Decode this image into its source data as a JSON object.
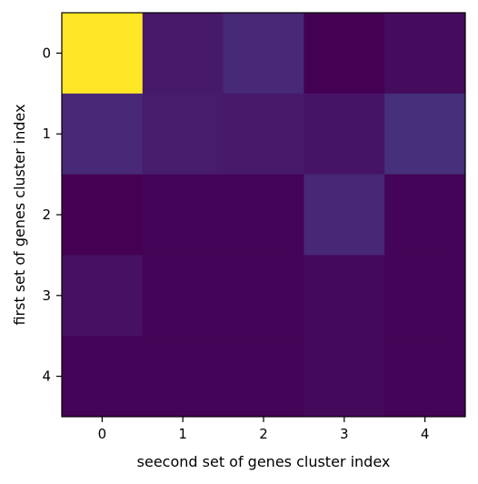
{
  "chart_data": {
    "type": "heatmap",
    "title": "",
    "xlabel": "seecond set of genes cluster index",
    "ylabel": "first set of genes cluster index",
    "x_categories": [
      "0",
      "1",
      "2",
      "3",
      "4"
    ],
    "y_categories": [
      "0",
      "1",
      "2",
      "3",
      "4"
    ],
    "colormap": "viridis",
    "clim": [
      0,
      1
    ],
    "values": [
      [
        1.0,
        0.09,
        0.15,
        0.0,
        0.04
      ],
      [
        0.15,
        0.1,
        0.09,
        0.07,
        0.17
      ],
      [
        0.0,
        0.01,
        0.01,
        0.14,
        0.01
      ],
      [
        0.06,
        0.01,
        0.01,
        0.03,
        0.01
      ],
      [
        0.01,
        0.01,
        0.01,
        0.03,
        0.01
      ]
    ]
  }
}
